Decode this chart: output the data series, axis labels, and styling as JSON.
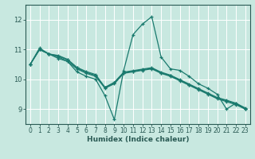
{
  "xlabel": "Humidex (Indice chaleur)",
  "xlim": [
    -0.5,
    23.5
  ],
  "ylim": [
    8.5,
    12.5
  ],
  "yticks": [
    9,
    10,
    11,
    12
  ],
  "xticks": [
    0,
    1,
    2,
    3,
    4,
    5,
    6,
    7,
    8,
    9,
    10,
    11,
    12,
    13,
    14,
    15,
    16,
    17,
    18,
    19,
    20,
    21,
    22,
    23
  ],
  "bg_color": "#c8e8e0",
  "grid_color": "#ffffff",
  "line_color": "#1a7a6e",
  "tick_color": "#2a5a54",
  "lines": [
    {
      "x": [
        0,
        1,
        2,
        3,
        4,
        5,
        6,
        7,
        8,
        9,
        10,
        11,
        12,
        13,
        14,
        15,
        16,
        17,
        18,
        19,
        20,
        21,
        22,
        23
      ],
      "y": [
        10.5,
        11.05,
        10.85,
        10.7,
        10.6,
        10.25,
        10.1,
        10.0,
        9.45,
        8.65,
        10.3,
        11.5,
        11.85,
        12.1,
        10.75,
        10.35,
        10.3,
        10.1,
        9.85,
        9.7,
        9.5,
        9.0,
        9.2,
        9.0
      ]
    },
    {
      "x": [
        0,
        1,
        2,
        3,
        4,
        5,
        6,
        7,
        8,
        9,
        10,
        11,
        12,
        13,
        14,
        15,
        16,
        17,
        18,
        19,
        20,
        21,
        22,
        23
      ],
      "y": [
        10.5,
        11.0,
        10.85,
        10.75,
        10.6,
        10.35,
        10.2,
        10.1,
        9.7,
        9.85,
        10.2,
        10.25,
        10.3,
        10.35,
        10.2,
        10.1,
        9.95,
        9.8,
        9.65,
        9.5,
        9.35,
        9.25,
        9.15,
        9.0
      ]
    },
    {
      "x": [
        0,
        1,
        2,
        3,
        4,
        5,
        6,
        7,
        8,
        9,
        10,
        11,
        12,
        13,
        14,
        15,
        16,
        17,
        18,
        19,
        20,
        21,
        22,
        23
      ],
      "y": [
        10.5,
        11.0,
        10.85,
        10.78,
        10.65,
        10.38,
        10.23,
        10.13,
        9.72,
        9.88,
        10.22,
        10.27,
        10.32,
        10.37,
        10.22,
        10.12,
        9.97,
        9.82,
        9.67,
        9.52,
        9.37,
        9.28,
        9.18,
        9.02
      ]
    },
    {
      "x": [
        0,
        1,
        2,
        3,
        4,
        5,
        6,
        7,
        8,
        9,
        10,
        11,
        12,
        13,
        14,
        15,
        16,
        17,
        18,
        19,
        20,
        21,
        22,
        23
      ],
      "y": [
        10.5,
        11.0,
        10.85,
        10.8,
        10.67,
        10.4,
        10.26,
        10.16,
        9.73,
        9.9,
        10.24,
        10.29,
        10.34,
        10.39,
        10.24,
        10.14,
        9.99,
        9.84,
        9.69,
        9.54,
        9.39,
        9.3,
        9.2,
        9.04
      ]
    }
  ]
}
